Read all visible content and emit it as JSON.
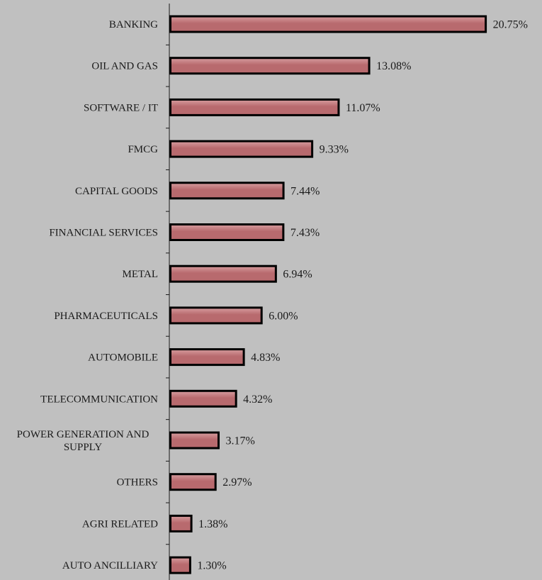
{
  "chart_data": {
    "type": "bar",
    "orientation": "horizontal",
    "categories": [
      "BANKING",
      "OIL AND GAS",
      "SOFTWARE / IT",
      "FMCG",
      "CAPITAL GOODS",
      "FINANCIAL SERVICES",
      "METAL",
      "PHARMACEUTICALS",
      "AUTOMOBILE",
      "TELECOMMUNICATION",
      "POWER GENERATION AND SUPPLY",
      "OTHERS",
      "AGRI RELATED",
      "AUTO ANCILLIARY"
    ],
    "category_label_lines": [
      [
        "BANKING"
      ],
      [
        "OIL AND GAS"
      ],
      [
        "SOFTWARE / IT"
      ],
      [
        "FMCG"
      ],
      [
        "CAPITAL GOODS"
      ],
      [
        "FINANCIAL SERVICES"
      ],
      [
        "METAL"
      ],
      [
        "PHARMACEUTICALS"
      ],
      [
        "AUTOMOBILE"
      ],
      [
        "TELECOMMUNICATION"
      ],
      [
        "POWER GENERATION AND",
        "SUPPLY"
      ],
      [
        "OTHERS"
      ],
      [
        "AGRI RELATED"
      ],
      [
        "AUTO ANCILLIARY"
      ]
    ],
    "values": [
      20.75,
      13.08,
      11.07,
      9.33,
      7.44,
      7.43,
      6.94,
      6.0,
      4.83,
      4.32,
      3.17,
      2.97,
      1.38,
      1.3
    ],
    "value_labels": [
      "20.75%",
      "13.08%",
      "11.07%",
      "9.33%",
      "7.44%",
      "7.43%",
      "6.94%",
      "6.00%",
      "4.83%",
      "4.32%",
      "3.17%",
      "2.97%",
      "1.38%",
      "1.30%"
    ],
    "unit": "%",
    "xlim": [
      0,
      24
    ],
    "grid": false,
    "legend": "none",
    "colors": {
      "background": "#c0c0c0",
      "bar_fill": "#b86a6e",
      "bar_highlight": "#d79ea0",
      "bar_border": "#000000",
      "axis": "#1a1a1a"
    }
  }
}
